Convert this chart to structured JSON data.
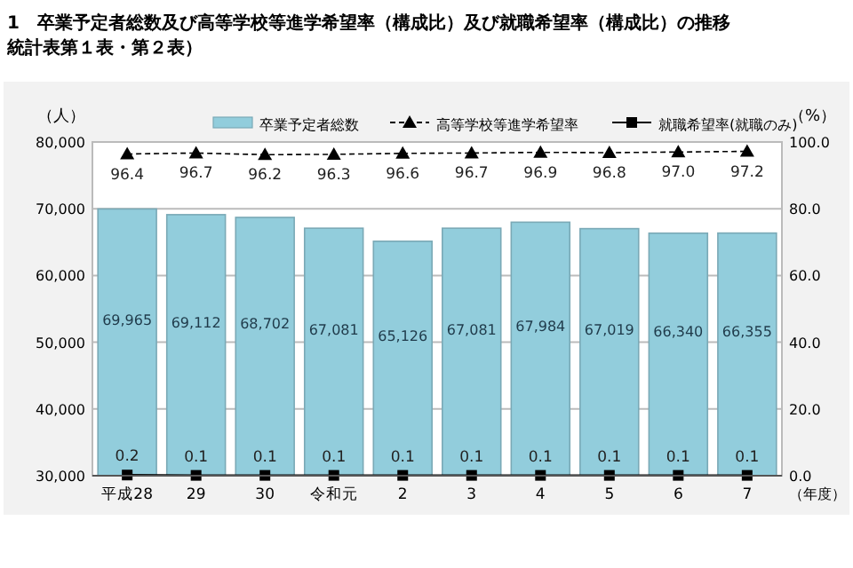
{
  "chart_data": {
    "type": "bar",
    "title": "1　卒業予定者総数及び高等学校等進学希望率（構成比）及び就職希望率（構成比）の推移",
    "subtitle": "統計表第１表・第２表）",
    "ylabel": "（人）",
    "y2label": "（%）",
    "xlabel": "（年度）",
    "categories": [
      "平成28",
      "29",
      "30",
      "令和元",
      "2",
      "3",
      "4",
      "5",
      "6",
      "7"
    ],
    "series": [
      {
        "name": "卒業予定者総数",
        "color": "#92cddc",
        "values": [
          69965,
          69112,
          68702,
          67081,
          65126,
          67081,
          67984,
          67019,
          66340,
          66355
        ],
        "value_labels": [
          "69,965",
          "69,112",
          "68,702",
          "67,081",
          "65,126",
          "67,081",
          "67,984",
          "67,019",
          "66,340",
          "66,355"
        ]
      },
      {
        "name": "高等学校等進学希望率",
        "type": "line",
        "axis": "y2",
        "color": "#000000",
        "marker": "triangle",
        "line_style": "dashed",
        "values": [
          96.4,
          96.7,
          96.2,
          96.3,
          96.6,
          96.7,
          96.9,
          96.8,
          97.0,
          97.2
        ],
        "value_labels": [
          "96.4",
          "96.7",
          "96.2",
          "96.3",
          "96.6",
          "96.7",
          "96.9",
          "96.8",
          "97.0",
          "97.2"
        ]
      },
      {
        "name": "就職希望率(就職のみ)",
        "type": "line",
        "axis": "y2",
        "color": "#000000",
        "marker": "square",
        "line_style": "solid",
        "values": [
          0.2,
          0.1,
          0.1,
          0.1,
          0.1,
          0.1,
          0.1,
          0.1,
          0.1,
          0.1
        ],
        "value_labels": [
          "0.2",
          "0.1",
          "0.1",
          "0.1",
          "0.1",
          "0.1",
          "0.1",
          "0.1",
          "0.1",
          "0.1"
        ]
      }
    ],
    "ylim": [
      30000,
      80000
    ],
    "yticks": [
      {
        "value": 30000,
        "label": "30,000"
      },
      {
        "value": 40000,
        "label": "40,000"
      },
      {
        "value": 50000,
        "label": "50,000"
      },
      {
        "value": 60000,
        "label": "60,000"
      },
      {
        "value": 70000,
        "label": "70,000"
      },
      {
        "value": 80000,
        "label": "80,000"
      }
    ],
    "y2lim": [
      0,
      100
    ],
    "y2ticks": [
      {
        "value": 0,
        "label": "0.0"
      },
      {
        "value": 20,
        "label": "20.0"
      },
      {
        "value": 40,
        "label": "40.0"
      },
      {
        "value": 60,
        "label": "60.0"
      },
      {
        "value": 80,
        "label": "80.0"
      },
      {
        "value": 100,
        "label": "100.0"
      }
    ],
    "grid": "y",
    "legend": "top"
  }
}
